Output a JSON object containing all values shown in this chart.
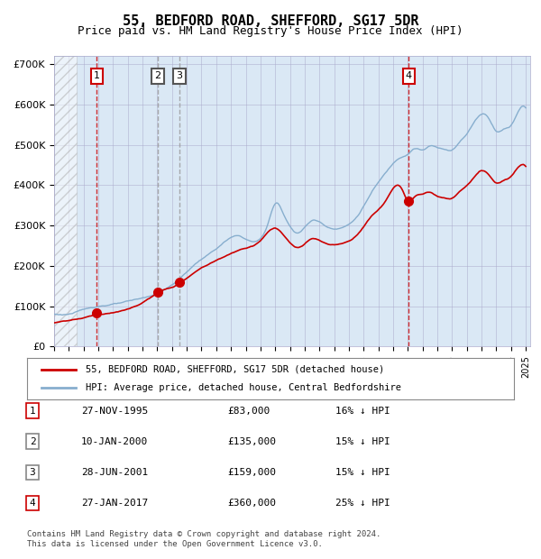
{
  "title": "55, BEDFORD ROAD, SHEFFORD, SG17 5DR",
  "subtitle": "Price paid vs. HM Land Registry's House Price Index (HPI)",
  "xlabel": "",
  "ylabel": "",
  "ylim": [
    0,
    720000
  ],
  "yticks": [
    0,
    100000,
    200000,
    300000,
    400000,
    500000,
    600000,
    700000
  ],
  "ytick_labels": [
    "£0",
    "£100K",
    "£200K",
    "£300K",
    "£400K",
    "£500K",
    "£600K",
    "£700K"
  ],
  "hpi_color": "#87AECE",
  "price_color": "#CC0000",
  "background_color": "#DAE8F5",
  "hatch_color": "#C0C8D8",
  "grid_color": "#AAAACC",
  "sale_dates": [
    "1995-11-27",
    "2000-01-10",
    "2001-06-28",
    "2017-01-27"
  ],
  "sale_prices": [
    83000,
    135000,
    159000,
    360000
  ],
  "sale_labels": [
    "1",
    "2",
    "3",
    "4"
  ],
  "sale_label_colors": [
    "#CC0000",
    "#555555",
    "#555555",
    "#CC0000"
  ],
  "sale_vline_colors": [
    "#CC0000",
    "#999999",
    "#999999",
    "#CC0000"
  ],
  "legend_line1": "55, BEDFORD ROAD, SHEFFORD, SG17 5DR (detached house)",
  "legend_line2": "HPI: Average price, detached house, Central Bedfordshire",
  "table_rows": [
    [
      "1",
      "27-NOV-1995",
      "£83,000",
      "16% ↓ HPI"
    ],
    [
      "2",
      "10-JAN-2000",
      "£135,000",
      "15% ↓ HPI"
    ],
    [
      "3",
      "28-JUN-2001",
      "£159,000",
      "15% ↓ HPI"
    ],
    [
      "4",
      "27-JAN-2017",
      "£360,000",
      "25% ↓ HPI"
    ]
  ],
  "footer": "Contains HM Land Registry data © Crown copyright and database right 2024.\nThis data is licensed under the Open Government Licence v3.0.",
  "x_start_year": 1993,
  "x_end_year": 2025
}
